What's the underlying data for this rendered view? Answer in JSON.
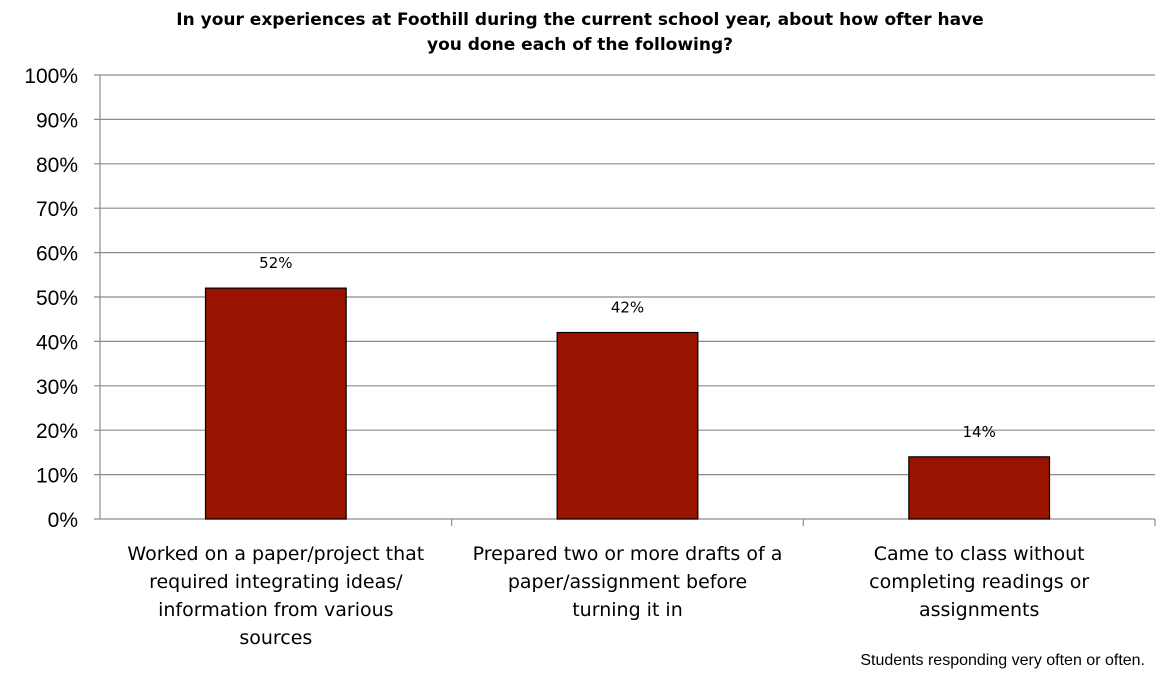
{
  "chart_data": {
    "type": "bar",
    "title_lines": [
      "In your experiences at Foothill during the current school year, about how ofter have",
      "you done each of the following?"
    ],
    "categories": [
      [
        "Worked on a paper/project that",
        "required integrating ideas/",
        "information from various",
        "sources"
      ],
      [
        "Prepared two or more drafts of a",
        "paper/assignment before",
        "turning it in"
      ],
      [
        "Came to class without",
        "completing readings or",
        "assignments"
      ]
    ],
    "values": [
      52,
      42,
      14
    ],
    "data_labels": [
      "52%",
      "42%",
      "14%"
    ],
    "ylim": [
      0,
      100
    ],
    "y_ticks": [
      0,
      10,
      20,
      30,
      40,
      50,
      60,
      70,
      80,
      90,
      100
    ],
    "y_tick_labels": [
      "0%",
      "10%",
      "20%",
      "30%",
      "40%",
      "50%",
      "60%",
      "70%",
      "80%",
      "90%",
      "100%"
    ],
    "grid": true,
    "bar_color": "#991400",
    "gridline_color": "#8c8c8c"
  },
  "footnote": "Students responding very often or often."
}
